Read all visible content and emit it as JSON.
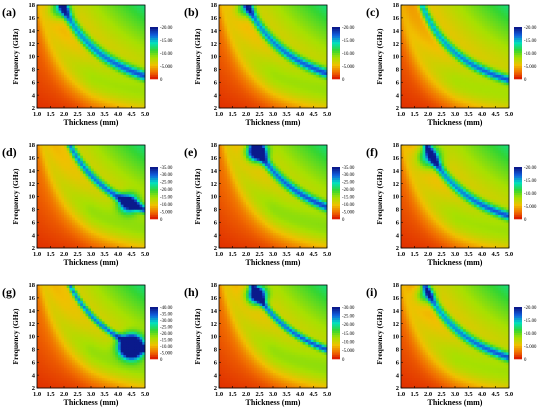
{
  "figure": {
    "panels": [
      {
        "id": "a",
        "label": "(a)",
        "xlabel": "Thickness (mm)",
        "ylabel": "Frequency (GHz)",
        "colorbar_ticks": [
          "-20.00",
          "-15.00",
          "-10.00",
          "-5.000",
          "0"
        ],
        "band": {
          "k": 35,
          "w": 0.55
        },
        "spot": {
          "t": 1.85,
          "f": 17.5,
          "r": 0.4,
          "amp": 6
        }
      },
      {
        "id": "b",
        "label": "(b)",
        "xlabel": "Thickness (mm)",
        "ylabel": "Frequency (GHz)",
        "colorbar_ticks": [
          "-20.00",
          "-15.00",
          "-10.00",
          "-5.000",
          "0"
        ],
        "band": {
          "k": 37,
          "w": 0.5
        },
        "spot": {
          "t": 1.95,
          "f": 17.5,
          "r": 0.35,
          "amp": 5
        }
      },
      {
        "id": "c",
        "label": "(c)",
        "xlabel": "Thickness (mm)",
        "ylabel": "Frequency (GHz)",
        "colorbar_ticks": [
          "-20.00",
          "-15.00",
          "-10.00",
          "-5.000",
          "0"
        ],
        "band": {
          "k": 32,
          "w": 0.5
        },
        "spot": null
      },
      {
        "id": "d",
        "label": "(d)",
        "xlabel": "Thickness (mm)",
        "ylabel": "Frequency (GHz)",
        "colorbar_ticks": [
          "-35.00",
          "-30.00",
          "-25.00",
          "-20.00",
          "-15.00",
          "-10.00",
          "-5.000",
          "0"
        ],
        "band": {
          "k": 40,
          "w": 0.4
        },
        "spot": {
          "t": 4.4,
          "f": 9,
          "r": 0.35,
          "amp": 10
        }
      },
      {
        "id": "e",
        "label": "(e)",
        "xlabel": "Thickness (mm)",
        "ylabel": "Frequency (GHz)",
        "colorbar_ticks": [
          "-35.00",
          "-30.00",
          "-25.00",
          "-20.00",
          "-15.00",
          "-10.00",
          "-5.000",
          "0"
        ],
        "band": {
          "k": 42,
          "w": 0.45
        },
        "spot": {
          "t": 2.4,
          "f": 17,
          "r": 0.35,
          "amp": 14
        }
      },
      {
        "id": "f",
        "label": "(f)",
        "xlabel": "Thickness (mm)",
        "ylabel": "Frequency (GHz)",
        "colorbar_ticks": [
          "-20.00",
          "-15.00",
          "-10.00",
          "-5.000",
          "0"
        ],
        "band": {
          "k": 35,
          "w": 0.5
        },
        "spot": {
          "t": 2.05,
          "f": 16.2,
          "r": 0.45,
          "amp": 7
        }
      },
      {
        "id": "g",
        "label": "(g)",
        "xlabel": "Thickness (mm)",
        "ylabel": "Frequency (GHz)",
        "colorbar_ticks": [
          "-40.00",
          "-35.00",
          "-30.00",
          "-25.00",
          "-20.00",
          "-15.00",
          "-10.00",
          "-5.000",
          "0"
        ],
        "band": {
          "k": 40,
          "w": 0.3
        },
        "spot": {
          "t": 4.5,
          "f": 8.5,
          "r": 0.4,
          "amp": 22
        }
      },
      {
        "id": "h",
        "label": "(h)",
        "xlabel": "Thickness (mm)",
        "ylabel": "Frequency (GHz)",
        "colorbar_ticks": [
          "-30.00",
          "-25.00",
          "-20.00",
          "-15.00",
          "-10.00",
          "-5.000",
          "0"
        ],
        "band": {
          "k": 40,
          "w": 0.35
        },
        "spot": {
          "t": 2.4,
          "f": 16.5,
          "r": 0.35,
          "amp": 12
        }
      },
      {
        "id": "i",
        "label": "(i)",
        "xlabel": "Thickness (mm)",
        "ylabel": "Frequency (GHz)",
        "colorbar_ticks": [
          "-20.00",
          "-15.00",
          "-10.00",
          "-5.000",
          "0"
        ],
        "band": {
          "k": 34,
          "w": 0.5
        },
        "spot": {
          "t": 1.9,
          "f": 16.5,
          "r": 0.35,
          "amp": 5
        }
      }
    ]
  },
  "chart_data": {
    "type": "heatmap",
    "panels": [
      "a",
      "b",
      "c",
      "d",
      "e",
      "f",
      "g",
      "h",
      "i"
    ],
    "xlabel": "Thickness (mm)",
    "ylabel": "Frequency (GHz)",
    "xlim": [
      1.0,
      5.0
    ],
    "ylim": [
      2,
      18
    ],
    "x_ticks": [
      "1.0",
      "1.5",
      "2.0",
      "2.5",
      "3.0",
      "3.5",
      "4.0",
      "4.5",
      "5.0"
    ],
    "y_ticks": [
      "2",
      "4",
      "6",
      "8",
      "10",
      "12",
      "14",
      "16",
      "18"
    ],
    "colormap": [
      "#d40000",
      "#f06a00",
      "#f0c000",
      "#a8e000",
      "#33d633",
      "#00e0c0",
      "#1060e0",
      "#0a1a8c"
    ]
  }
}
